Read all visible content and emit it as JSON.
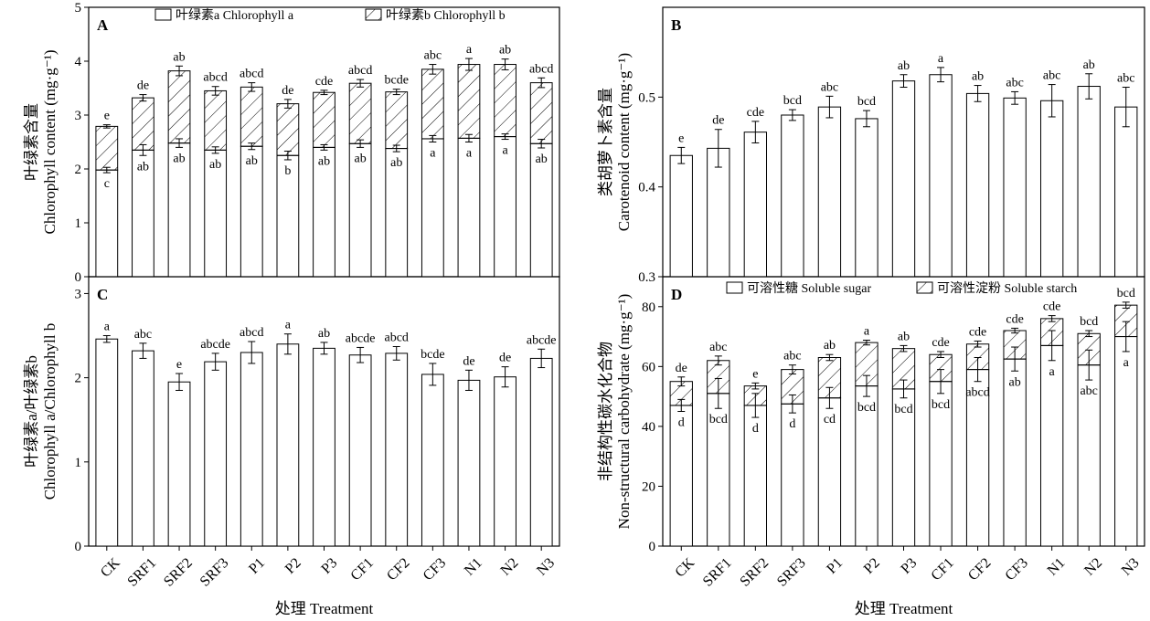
{
  "x_axis_label": "处理 Treatment",
  "categories": [
    "CK",
    "SRF1",
    "SRF2",
    "SRF3",
    "P1",
    "P2",
    "P3",
    "CF1",
    "CF2",
    "CF3",
    "N1",
    "N2",
    "N3"
  ],
  "chart_data": [
    {
      "panel": "A",
      "type": "bar",
      "stacked": true,
      "ylabel_line1": "叶绿素含量",
      "ylabel_line2": "Chlorophyll content (mg·g⁻¹)",
      "ylim": [
        0,
        5
      ],
      "yticks": [
        "0",
        "1",
        "2",
        "3",
        "4",
        "5"
      ],
      "legend": [
        "叶绿素a Chlorophyll a",
        "叶绿素b Chlorophyll b"
      ],
      "series": [
        {
          "name": "叶绿素a Chlorophyll a",
          "values": [
            1.98,
            2.35,
            2.48,
            2.35,
            2.42,
            2.25,
            2.4,
            2.47,
            2.38,
            2.56,
            2.57,
            2.6,
            2.47
          ],
          "err": [
            0.05,
            0.1,
            0.08,
            0.06,
            0.06,
            0.08,
            0.05,
            0.07,
            0.06,
            0.06,
            0.07,
            0.05,
            0.08
          ],
          "letters": [
            "c",
            "ab",
            "ab",
            "ab",
            "ab",
            "b",
            "ab",
            "ab",
            "ab",
            "a",
            "a",
            "a",
            "ab"
          ]
        },
        {
          "name": "叶绿素b Chlorophyll b",
          "totals": [
            2.79,
            3.32,
            3.82,
            3.45,
            3.52,
            3.21,
            3.42,
            3.59,
            3.43,
            3.85,
            3.94,
            3.94,
            3.6
          ],
          "err": [
            0.03,
            0.06,
            0.09,
            0.08,
            0.08,
            0.08,
            0.04,
            0.07,
            0.05,
            0.09,
            0.11,
            0.1,
            0.09
          ],
          "letters": [
            "e",
            "de",
            "ab",
            "abcd",
            "abcd",
            "de",
            "cde",
            "abcd",
            "bcde",
            "abc",
            "a",
            "ab",
            "abcd"
          ]
        }
      ]
    },
    {
      "panel": "B",
      "type": "bar",
      "ylabel_line1": "类胡萝卜素含量",
      "ylabel_line2": "Carotenoid content (mg·g⁻¹)",
      "ylim": [
        0.3,
        0.6
      ],
      "yticks": [
        "0.3",
        "0.4",
        "0.5"
      ],
      "values": [
        0.435,
        0.443,
        0.461,
        0.48,
        0.489,
        0.476,
        0.518,
        0.525,
        0.504,
        0.499,
        0.496,
        0.512,
        0.489
      ],
      "err": [
        0.009,
        0.021,
        0.012,
        0.006,
        0.012,
        0.009,
        0.007,
        0.008,
        0.009,
        0.007,
        0.018,
        0.014,
        0.022
      ],
      "letters": [
        "e",
        "de",
        "cde",
        "bcd",
        "abc",
        "bcd",
        "ab",
        "a",
        "ab",
        "abc",
        "abc",
        "ab",
        "abc"
      ]
    },
    {
      "panel": "C",
      "type": "bar",
      "ylabel_line1": "叶绿素a/叶绿素b",
      "ylabel_line2": "Chlorophyll a/Chlorophyll b",
      "ylim": [
        0,
        3.2
      ],
      "yticks": [
        "0",
        "1",
        "2",
        "3"
      ],
      "values": [
        2.46,
        2.32,
        1.95,
        2.19,
        2.3,
        2.4,
        2.35,
        2.27,
        2.29,
        2.04,
        1.97,
        2.01,
        2.23
      ],
      "err": [
        0.04,
        0.09,
        0.1,
        0.1,
        0.13,
        0.12,
        0.07,
        0.09,
        0.08,
        0.13,
        0.12,
        0.12,
        0.11
      ],
      "letters": [
        "a",
        "abc",
        "e",
        "abcde",
        "abcd",
        "a",
        "ab",
        "abcde",
        "abcd",
        "bcde",
        "de",
        "de",
        "abcde"
      ]
    },
    {
      "panel": "D",
      "type": "bar",
      "stacked": true,
      "ylabel_line1": "非结构性碳水化合物",
      "ylabel_line2": "Non-structural carbohydrate (mg·g⁻¹)",
      "ylim": [
        0,
        90
      ],
      "yticks": [
        "0",
        "20",
        "40",
        "60",
        "80"
      ],
      "legend": [
        "可溶性糖  Soluble sugar",
        "可溶性淀粉  Soluble starch"
      ],
      "series": [
        {
          "name": "可溶性糖  Soluble sugar",
          "values": [
            47,
            51,
            47,
            47.5,
            49.5,
            53.5,
            52.5,
            55,
            59,
            62.5,
            67,
            60.5,
            70
          ],
          "err": [
            2.0,
            5.0,
            4.0,
            3.0,
            3.5,
            3.5,
            3.0,
            4.0,
            4.0,
            4.0,
            5.0,
            5.0,
            5.0
          ],
          "letters": [
            "d",
            "bcd",
            "d",
            "d",
            "cd",
            "bcd",
            "bcd",
            "bcd",
            "abcd",
            "ab",
            "a",
            "abc",
            "a"
          ]
        },
        {
          "name": "可溶性淀粉  Soluble starch",
          "totals": [
            55,
            62,
            53.5,
            59,
            63,
            68,
            66,
            64,
            67.5,
            72,
            76,
            71,
            80.5
          ],
          "err": [
            1.5,
            1.5,
            1.0,
            1.5,
            1.0,
            0.8,
            1.0,
            1.0,
            1.0,
            0.8,
            1.0,
            1.0,
            1.0
          ],
          "letters": [
            "de",
            "abc",
            "e",
            "abc",
            "ab",
            "a",
            "ab",
            "cde",
            "cde",
            "cde",
            "cde",
            "bcd",
            "bcd"
          ]
        }
      ]
    }
  ]
}
